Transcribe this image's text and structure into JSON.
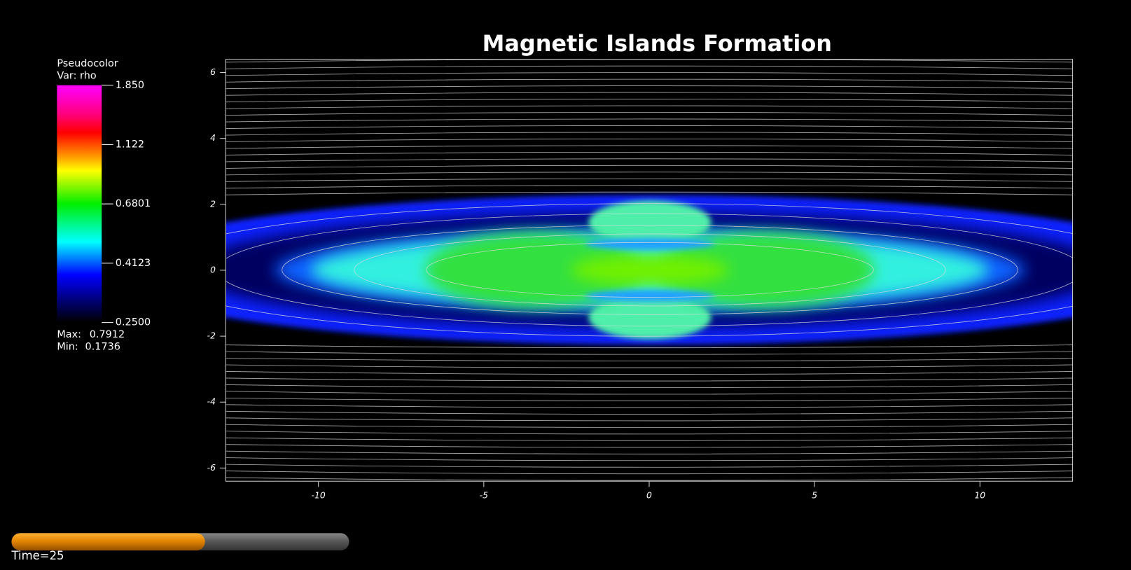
{
  "chart_data": {
    "type": "pseudocolor",
    "title": "Magnetic Islands Formation",
    "xlim": [
      -12.8,
      12.8
    ],
    "ylim": [
      -6.4,
      6.4
    ],
    "xticks": [
      -10,
      -5,
      0,
      5,
      10
    ],
    "yticks": [
      -6,
      -4,
      -2,
      0,
      2,
      4,
      6
    ],
    "colorbar": {
      "title": "Pseudocolor",
      "variable": "Var: rho",
      "log_scale": true,
      "clim": [
        0.25,
        1.85
      ],
      "ticks": [
        {
          "value": 1.85,
          "label": "1.850"
        },
        {
          "value": 1.122,
          "label": "1.122"
        },
        {
          "value": 0.6801,
          "label": "0.6801"
        },
        {
          "value": 0.4123,
          "label": "0.4123"
        },
        {
          "value": 0.25,
          "label": "0.2500"
        }
      ],
      "max_label": "Max:",
      "max": 0.7912,
      "min_label": "Min:",
      "min": 0.1736
    },
    "time_label": "Time=25",
    "time_progress": 0.55
  }
}
